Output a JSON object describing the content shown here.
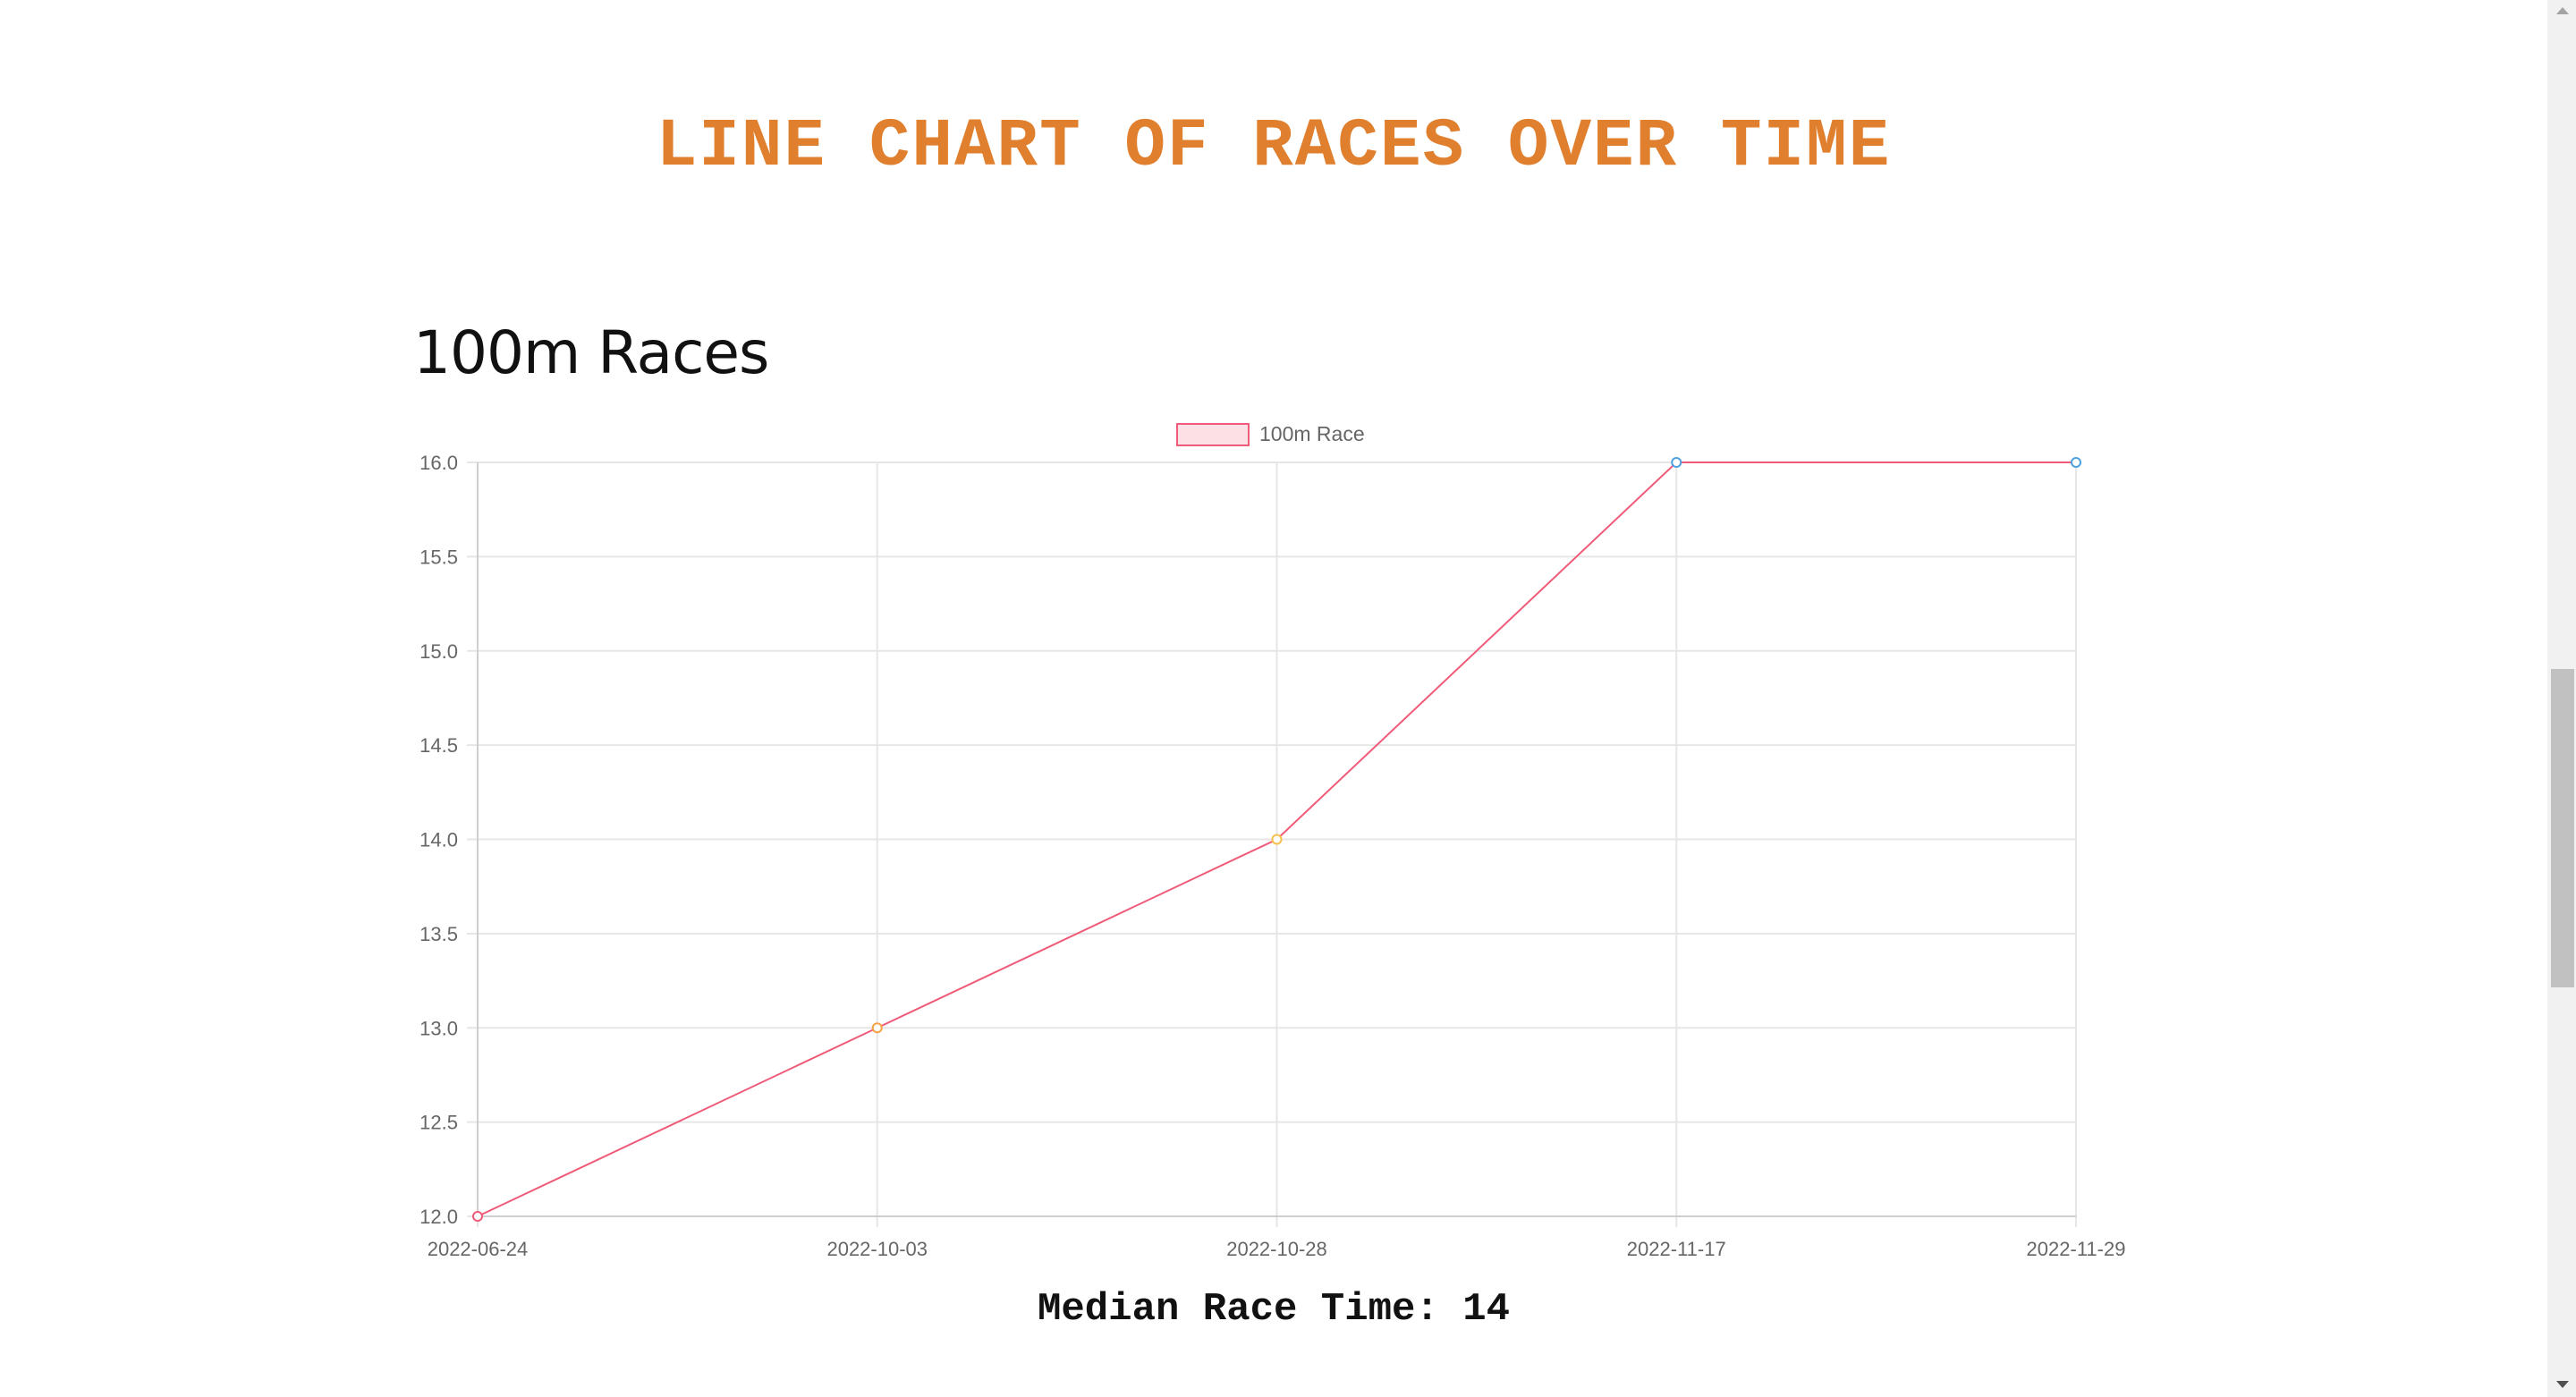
{
  "page": {
    "title": "LINE CHART OF RACES OVER TIME",
    "section_title": "100m Races",
    "median_label": "Median Race Time: 14"
  },
  "colors": {
    "title": "#e07f2e",
    "line": "#ef5b78",
    "legend_fill": "#fbe1e6",
    "legend_stroke": "#ef5b78",
    "grid": "#e6e6e6",
    "axis_text": "#666666"
  },
  "chart_data": {
    "type": "line",
    "x": [
      "2022-06-24",
      "2022-10-03",
      "2022-10-28",
      "2022-11-17",
      "2022-11-29"
    ],
    "series": [
      {
        "name": "100m Race",
        "values": [
          12,
          13,
          14,
          16,
          16
        ],
        "point_colors": [
          "#ef5b78",
          "#f5a145",
          "#f5c04a",
          "#4ea1df",
          "#4ea1df"
        ]
      }
    ],
    "y_ticks": [
      "12.0",
      "12.5",
      "13.0",
      "13.5",
      "14.0",
      "14.5",
      "15.0",
      "15.5",
      "16.0"
    ],
    "ylim": [
      12,
      16
    ],
    "grid": true,
    "legend": "top-center"
  }
}
